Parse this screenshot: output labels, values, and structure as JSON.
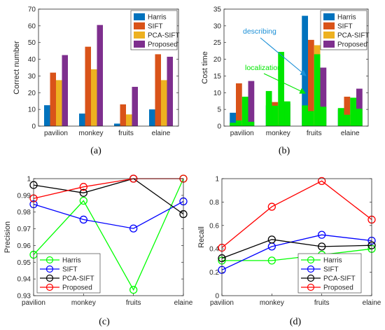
{
  "colors": {
    "Harris": "#0072bd",
    "SIFT": "#d95319",
    "PCA-SIFT": "#edb120",
    "Proposed": "#7e2f8e",
    "localization": "#00e600",
    "describing_arrow": "#1a8fd6",
    "line_Harris": "#00ff00",
    "line_SIFT": "#0000ff",
    "line_PCA-SIFT": "#000000",
    "line_Proposed": "#ff0000"
  },
  "captions": [
    "(a)",
    "(b)",
    "(c)",
    "(d)"
  ],
  "annotations": {
    "describing": "describing",
    "localization": "localization"
  },
  "chart_data": [
    {
      "type": "bar",
      "ylabel": "Correct number",
      "ylim": [
        0,
        70
      ],
      "yticks": [
        0,
        10,
        20,
        30,
        40,
        50,
        60,
        70
      ],
      "categories": [
        "pavilion",
        "monkey",
        "fruits",
        "elaine"
      ],
      "legend": "top-right",
      "series": [
        {
          "name": "Harris",
          "values": [
            12.5,
            7.5,
            1.5,
            10
          ]
        },
        {
          "name": "SIFT",
          "values": [
            32,
            47.5,
            13,
            43
          ]
        },
        {
          "name": "PCA-SIFT",
          "values": [
            27.5,
            34,
            7,
            27.5
          ]
        },
        {
          "name": "Proposed",
          "values": [
            42.5,
            60.5,
            23.5,
            41.5
          ]
        }
      ]
    },
    {
      "type": "bar",
      "ylabel": "Cost time",
      "ylim": [
        0,
        35
      ],
      "yticks": [
        0,
        5,
        10,
        15,
        20,
        25,
        30,
        35
      ],
      "categories": [
        "pavilion",
        "monkey",
        "fruits",
        "elaine"
      ],
      "legend": "top-right",
      "series": [
        {
          "name": "Harris",
          "values": [
            4,
            6.2,
            33,
            5
          ]
        },
        {
          "name": "SIFT",
          "values": [
            12.8,
            7.2,
            25.8,
            8.8
          ]
        },
        {
          "name": "PCA-SIFT",
          "values": [
            7.2,
            5.2,
            24.2,
            6.5
          ]
        },
        {
          "name": "Proposed",
          "values": [
            13.5,
            6.8,
            17.5,
            11.2
          ]
        }
      ],
      "localization": [
        1,
        1.7,
        8.8,
        1.3,
        10.5,
        6.1,
        22.2,
        7.4,
        6.2,
        4.5,
        21.5,
        5.8,
        5.4,
        3.4,
        8.5,
        5.2
      ]
    },
    {
      "type": "line",
      "ylabel": "Precision",
      "ylim": [
        0.93,
        1
      ],
      "yticks": [
        0.93,
        0.94,
        0.95,
        0.96,
        0.97,
        0.98,
        0.99,
        1
      ],
      "ytick_labels": [
        "0.93",
        "0.94",
        "0.95",
        "0.96",
        "0.97",
        "0.98",
        "0.99",
        "1"
      ],
      "categories": [
        "pavilion",
        "monkey",
        "fruits",
        "elaine"
      ],
      "legend": "bottom-left",
      "series": [
        {
          "name": "Harris",
          "values": [
            0.9545,
            0.9868,
            0.9335,
            1.0
          ]
        },
        {
          "name": "SIFT",
          "values": [
            0.9847,
            0.9755,
            0.9702,
            0.9864
          ]
        },
        {
          "name": "PCA-SIFT",
          "values": [
            0.9962,
            0.9915,
            1.0,
            0.9788
          ]
        },
        {
          "name": "Proposed",
          "values": [
            0.9882,
            0.9951,
            1.0,
            1.0
          ]
        }
      ]
    },
    {
      "type": "line",
      "ylabel": "Recall",
      "ylim": [
        0,
        1
      ],
      "yticks": [
        0,
        0.2,
        0.4,
        0.6,
        0.8,
        1
      ],
      "ytick_labels": [
        "0",
        "0.2",
        "0.4",
        "0.6",
        "0.8",
        "1"
      ],
      "categories": [
        "pavilion",
        "monkey",
        "fruits",
        "elaine"
      ],
      "legend": "bottom-right",
      "series": [
        {
          "name": "Harris",
          "values": [
            0.3,
            0.3,
            0.35,
            0.4
          ]
        },
        {
          "name": "SIFT",
          "values": [
            0.22,
            0.42,
            0.52,
            0.47
          ]
        },
        {
          "name": "PCA-SIFT",
          "values": [
            0.32,
            0.48,
            0.42,
            0.43
          ]
        },
        {
          "name": "Proposed",
          "values": [
            0.41,
            0.76,
            0.98,
            0.65
          ]
        }
      ]
    }
  ]
}
